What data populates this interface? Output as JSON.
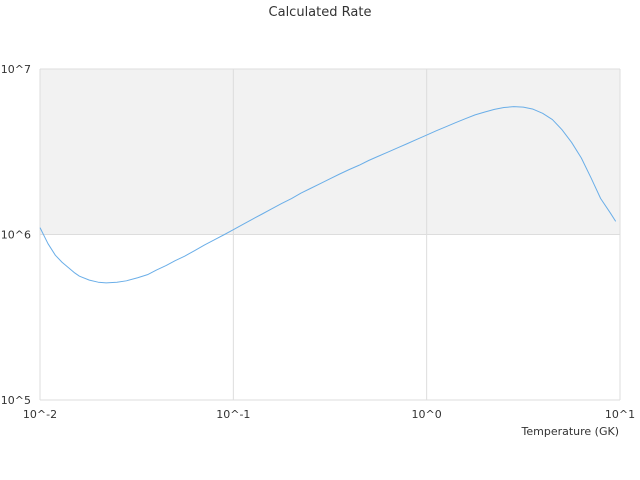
{
  "chart_data": {
    "type": "line",
    "title": "Calculated Rate",
    "xlabel": "Temperature (GK)",
    "ylabel": "",
    "x_scale": "log",
    "y_scale": "log",
    "xlim": [
      0.01,
      10
    ],
    "ylim": [
      100000,
      10000000
    ],
    "x_ticks": [
      0.01,
      0.1,
      1,
      10
    ],
    "x_tick_labels": [
      "10^-2",
      "10^-1",
      "10^0",
      "10^1"
    ],
    "y_ticks": [
      100000,
      1000000,
      10000000
    ],
    "y_tick_labels": [
      "10^5",
      "10^6",
      "10^7"
    ],
    "grid": true,
    "legend": "none",
    "band": {
      "y_from": 1000000,
      "y_to": 10000000,
      "color": "#f2f2f2"
    },
    "colors": {
      "line": "#6aaee8",
      "grid": "#dddddd",
      "band": "#f2f2f2"
    },
    "series": [
      {
        "x": [
          0.01,
          0.011,
          0.012,
          0.013,
          0.015,
          0.016,
          0.018,
          0.02,
          0.022,
          0.025,
          0.028,
          0.032,
          0.036,
          0.04,
          0.045,
          0.05,
          0.056,
          0.063,
          0.071,
          0.08,
          0.09,
          0.1,
          0.112,
          0.126,
          0.141,
          0.158,
          0.178,
          0.2,
          0.224,
          0.251,
          0.282,
          0.316,
          0.355,
          0.398,
          0.447,
          0.501,
          0.562,
          0.631,
          0.708,
          0.794,
          0.891,
          1.0,
          1.12,
          1.26,
          1.41,
          1.58,
          1.78,
          2.0,
          2.24,
          2.51,
          2.82,
          3.16,
          3.55,
          3.98,
          4.47,
          5.01,
          5.62,
          6.31,
          7.08,
          7.94,
          8.91,
          9.5
        ],
        "y": [
          1100000,
          880000,
          750000,
          680000,
          590000,
          560000,
          530000,
          515000,
          510000,
          515000,
          525000,
          548000,
          572000,
          610000,
          650000,
          695000,
          740000,
          798000,
          865000,
          930000,
          1000000,
          1070000,
          1150000,
          1240000,
          1330000,
          1430000,
          1540000,
          1650000,
          1780000,
          1900000,
          2030000,
          2170000,
          2320000,
          2470000,
          2620000,
          2800000,
          2970000,
          3150000,
          3340000,
          3540000,
          3760000,
          3990000,
          4230000,
          4480000,
          4740000,
          5000000,
          5280000,
          5500000,
          5700000,
          5850000,
          5920000,
          5880000,
          5720000,
          5400000,
          4950000,
          4300000,
          3600000,
          2900000,
          2200000,
          1650000,
          1350000,
          1200000
        ]
      }
    ]
  }
}
